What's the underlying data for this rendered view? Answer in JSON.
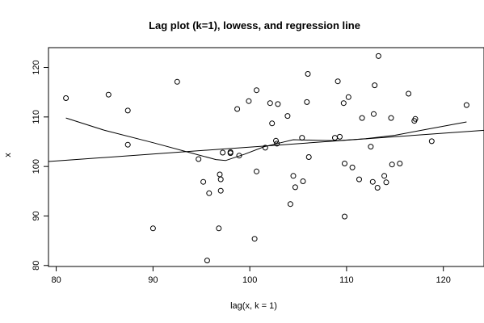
{
  "chart_data": {
    "type": "scatter",
    "title": "Lag plot (k=1), lowess, and regression line",
    "xlabel": "lag(x, k = 1)",
    "ylabel": "x",
    "xlim": [
      79.2,
      124.2
    ],
    "ylim": [
      79.8,
      124.0
    ],
    "x_ticks": [
      80,
      90,
      100,
      110,
      120
    ],
    "y_ticks": [
      80,
      90,
      100,
      110,
      120
    ],
    "grid": false,
    "legend": "none",
    "points": [
      [
        81.0,
        113.8
      ],
      [
        85.4,
        114.5
      ],
      [
        87.4,
        111.3
      ],
      [
        87.4,
        104.4
      ],
      [
        90.0,
        87.5
      ],
      [
        92.5,
        117.1
      ],
      [
        94.7,
        101.5
      ],
      [
        95.2,
        96.9
      ],
      [
        95.8,
        94.6
      ],
      [
        95.6,
        81.0
      ],
      [
        96.8,
        87.5
      ],
      [
        96.9,
        98.4
      ],
      [
        97.0,
        97.4
      ],
      [
        97.0,
        95.1
      ],
      [
        97.2,
        102.8
      ],
      [
        98.0,
        102.7
      ],
      [
        98.0,
        102.9
      ],
      [
        98.7,
        111.6
      ],
      [
        98.9,
        102.2
      ],
      [
        99.9,
        113.2
      ],
      [
        100.5,
        85.4
      ],
      [
        100.7,
        115.4
      ],
      [
        100.7,
        99.0
      ],
      [
        101.6,
        103.8
      ],
      [
        102.1,
        112.8
      ],
      [
        102.3,
        108.7
      ],
      [
        102.7,
        105.2
      ],
      [
        102.8,
        104.6
      ],
      [
        102.9,
        112.6
      ],
      [
        103.9,
        110.2
      ],
      [
        104.2,
        92.4
      ],
      [
        104.5,
        98.1
      ],
      [
        104.7,
        95.8
      ],
      [
        105.4,
        105.8
      ],
      [
        105.5,
        97.0
      ],
      [
        105.9,
        113.0
      ],
      [
        106.0,
        118.7
      ],
      [
        106.1,
        101.9
      ],
      [
        108.8,
        105.8
      ],
      [
        109.1,
        117.2
      ],
      [
        109.3,
        106.0
      ],
      [
        109.7,
        112.8
      ],
      [
        109.8,
        100.6
      ],
      [
        109.8,
        89.9
      ],
      [
        110.2,
        114.0
      ],
      [
        110.6,
        99.8
      ],
      [
        111.3,
        97.4
      ],
      [
        111.6,
        109.8
      ],
      [
        112.5,
        104.0
      ],
      [
        112.7,
        96.9
      ],
      [
        112.8,
        110.6
      ],
      [
        112.9,
        116.4
      ],
      [
        113.2,
        95.7
      ],
      [
        113.3,
        122.3
      ],
      [
        113.9,
        98.1
      ],
      [
        114.1,
        96.8
      ],
      [
        114.6,
        109.8
      ],
      [
        114.7,
        100.4
      ],
      [
        115.5,
        100.6
      ],
      [
        116.4,
        114.7
      ],
      [
        117.0,
        109.2
      ],
      [
        117.1,
        109.6
      ],
      [
        118.8,
        105.1
      ],
      [
        122.4,
        112.4
      ]
    ],
    "regression_line": [
      [
        79.2,
        101.0
      ],
      [
        124.2,
        107.3
      ]
    ],
    "lowess_line": [
      [
        81.0,
        109.8
      ],
      [
        85.0,
        107.3
      ],
      [
        90.0,
        104.8
      ],
      [
        94.0,
        102.7
      ],
      [
        96.5,
        101.4
      ],
      [
        97.5,
        101.2
      ],
      [
        99.5,
        102.5
      ],
      [
        101.5,
        104.0
      ],
      [
        103.0,
        104.7
      ],
      [
        104.5,
        105.4
      ],
      [
        107.0,
        105.3
      ],
      [
        109.0,
        105.2
      ],
      [
        112.0,
        105.6
      ],
      [
        115.0,
        106.3
      ],
      [
        118.0,
        107.4
      ],
      [
        122.4,
        109.0
      ]
    ]
  }
}
